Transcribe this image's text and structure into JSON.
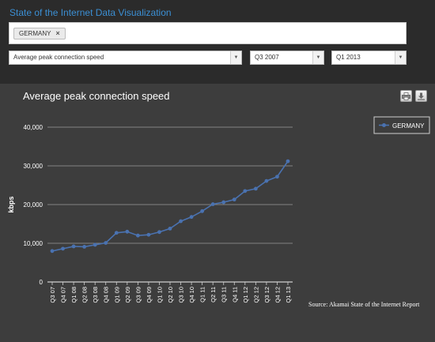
{
  "app": {
    "title": "State of the Internet Data Visualization"
  },
  "filters": {
    "tags": [
      {
        "label": "GERMANY",
        "remove_icon": "×"
      }
    ],
    "metric_select": "Average peak connection speed",
    "start_select": "Q3 2007",
    "end_select": "Q1 2013",
    "arrow": "▼"
  },
  "chart": {
    "title": "Average peak connection speed",
    "print_icon": "printer-icon",
    "download_icon": "download-icon",
    "source": "Source: Akamai State of the Internet Report"
  },
  "chart_data": {
    "type": "line",
    "title": "Average peak connection speed",
    "ylabel": "kbps",
    "xlabel": "",
    "ylim": [
      0,
      40000
    ],
    "yticks": [
      0,
      10000,
      20000,
      30000,
      40000
    ],
    "ytick_labels": [
      "0",
      "10,000",
      "20,000",
      "30,000",
      "40,000"
    ],
    "grid": true,
    "legend": "top-right",
    "categories": [
      "Q3 07",
      "Q4 07",
      "Q1 08",
      "Q2 08",
      "Q3 08",
      "Q4 08",
      "Q1 09",
      "Q2 09",
      "Q3 09",
      "Q4 09",
      "Q1 10",
      "Q2 10",
      "Q3 10",
      "Q4 10",
      "Q1 11",
      "Q2 11",
      "Q3 11",
      "Q4 11",
      "Q1 12",
      "Q2 12",
      "Q3 12",
      "Q4 12",
      "Q1 13"
    ],
    "series": [
      {
        "name": "GERMANY",
        "color": "#4a72b0",
        "values": [
          8000,
          8600,
          9200,
          9100,
          9600,
          10100,
          12700,
          13000,
          12000,
          12200,
          12900,
          13800,
          15700,
          16800,
          18300,
          20100,
          20600,
          21300,
          23500,
          24100,
          26100,
          27200,
          31200
        ]
      }
    ]
  }
}
